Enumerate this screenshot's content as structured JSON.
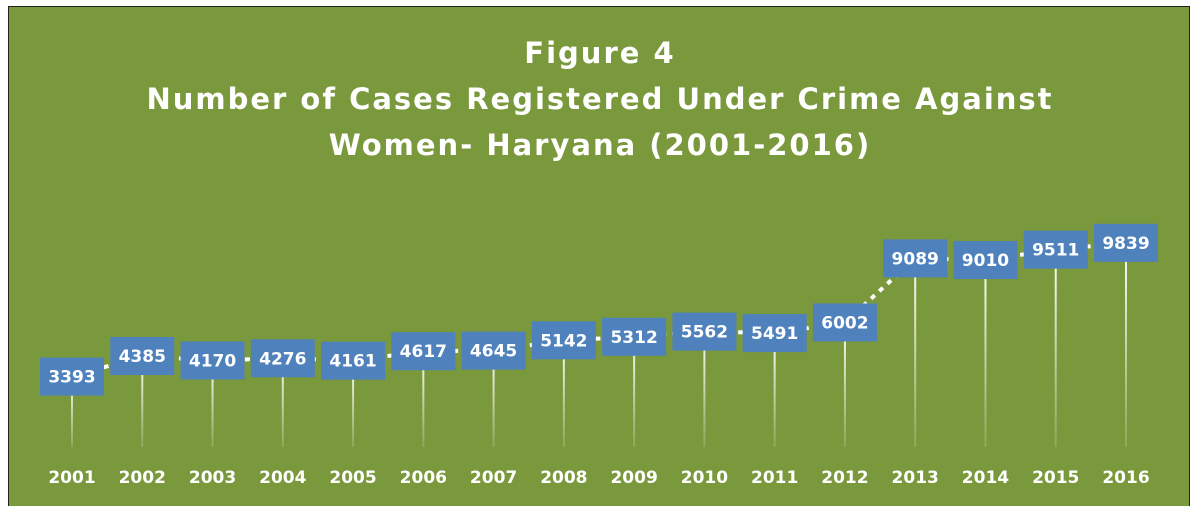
{
  "chart_data": {
    "type": "line",
    "title": "Figure 4",
    "subtitle": "Number of Cases Registered Under Crime Against Women- Haryana (2001-2016)",
    "categories": [
      "2001",
      "2002",
      "2003",
      "2004",
      "2005",
      "2006",
      "2007",
      "2008",
      "2009",
      "2010",
      "2011",
      "2012",
      "2013",
      "2014",
      "2015",
      "2016"
    ],
    "values": [
      3393,
      4385,
      4170,
      4276,
      4161,
      4617,
      4645,
      5142,
      5312,
      5562,
      5491,
      6002,
      9089,
      9010,
      9511,
      9839
    ],
    "color": "#ffffff",
    "ylim": [
      0,
      12000
    ]
  }
}
